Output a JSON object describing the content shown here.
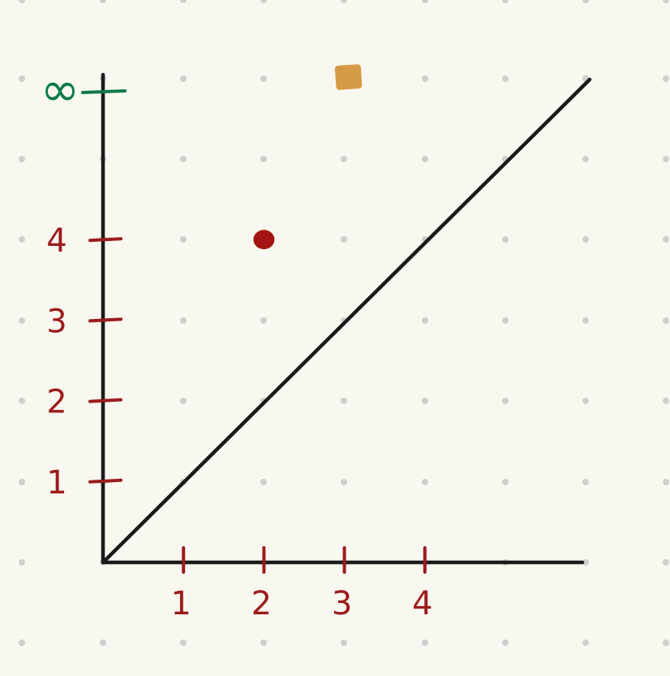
{
  "chart_data": {
    "type": "scatter",
    "title": "",
    "xlabel": "",
    "ylabel": "",
    "xlim": [
      0,
      6
    ],
    "ylim": [
      0,
      6
    ],
    "grid": "dots",
    "x_ticks": [
      "1",
      "2",
      "3",
      "4"
    ],
    "y_ticks": [
      "1",
      "2",
      "3",
      "4"
    ],
    "y_infinity_label": "∞",
    "diagonal_line": {
      "from": [
        0,
        0
      ],
      "to": [
        6,
        6
      ]
    },
    "points": [
      {
        "x": 2,
        "y": 4,
        "shape": "circle",
        "color": "#a31515"
      },
      {
        "x": 3,
        "y": "∞",
        "shape": "square",
        "color": "#d59a45"
      }
    ]
  },
  "colors": {
    "background": "#f9f8f0",
    "grid_dot": "#cfcfcf",
    "axis": "#1a1a1a",
    "tick": "#9c1c1c",
    "infinity": "#0e7a4a"
  }
}
